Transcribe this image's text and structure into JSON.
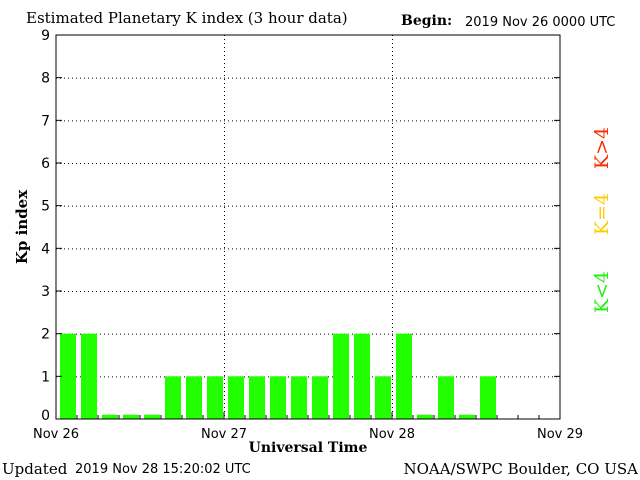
{
  "header": {
    "title": "Estimated Planetary K index (3 hour data)",
    "begin_label": "Begin:",
    "begin_value": "2019 Nov 26 0000 UTC"
  },
  "footer": {
    "updated_label": "Updated",
    "updated_value": "2019 Nov 28 15:20:02 UTC",
    "credit": "NOAA/SWPC Boulder, CO USA"
  },
  "legend": [
    {
      "label": "K>4",
      "color": "#ff2a00"
    },
    {
      "label": "K=4",
      "color": "#ffcc00"
    },
    {
      "label": "K<4",
      "color": "#22ee11"
    }
  ],
  "chart_data": {
    "type": "bar",
    "title": "Estimated Planetary K index (3 hour data)",
    "xlabel": "Universal Time",
    "ylabel": "Kp index",
    "ylim": [
      0,
      9
    ],
    "yticks": [
      0,
      1,
      2,
      3,
      4,
      5,
      6,
      7,
      8,
      9
    ],
    "xticks": [
      "Nov 26",
      "Nov 27",
      "Nov 28",
      "Nov 29"
    ],
    "bar_interval_hours": 3,
    "grid": true,
    "bar_color": "#22ff00",
    "values": [
      2,
      2,
      0.1,
      0.1,
      0.1,
      1,
      1,
      1,
      1,
      1,
      1,
      1,
      1,
      2,
      2,
      1,
      2,
      0.1,
      1,
      0.1,
      1
    ]
  }
}
